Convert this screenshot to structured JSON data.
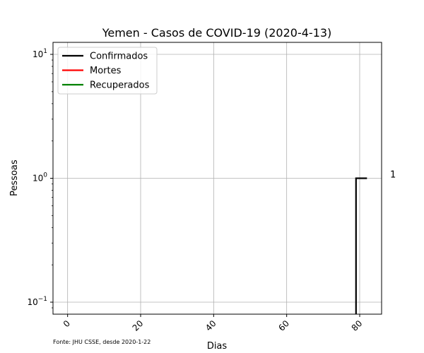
{
  "chart_data": {
    "type": "line",
    "title": "Yemen - Casos de COVID-19 (2020-4-13)",
    "xlabel": "Dias",
    "ylabel": "Pessoas",
    "yscale": "log",
    "xlim": [
      -4,
      86
    ],
    "ylim": [
      0.08,
      12.5
    ],
    "xticks": [
      0,
      20,
      40,
      60,
      80
    ],
    "xtick_labels": [
      "0",
      "20",
      "40",
      "60",
      "80"
    ],
    "yticks": [
      0.1,
      1,
      10
    ],
    "ytick_labels": [
      {
        "base": "10",
        "exp": "−1"
      },
      {
        "base": "10",
        "exp": "0"
      },
      {
        "base": "10",
        "exp": "1"
      }
    ],
    "grid": true,
    "legend_placement": "top-left",
    "series": [
      {
        "name": "Confirmados",
        "color": "#000000",
        "x": [
          79,
          79,
          82
        ],
        "y": [
          0.08,
          1,
          1
        ]
      },
      {
        "name": "Mortes",
        "color": "#ff0000",
        "x": [],
        "y": []
      },
      {
        "name": "Recuperados",
        "color": "#008000",
        "x": [],
        "y": []
      }
    ],
    "end_label": "1",
    "source_note": "Fonte: JHU CSSE, desde 2020-1-22"
  }
}
